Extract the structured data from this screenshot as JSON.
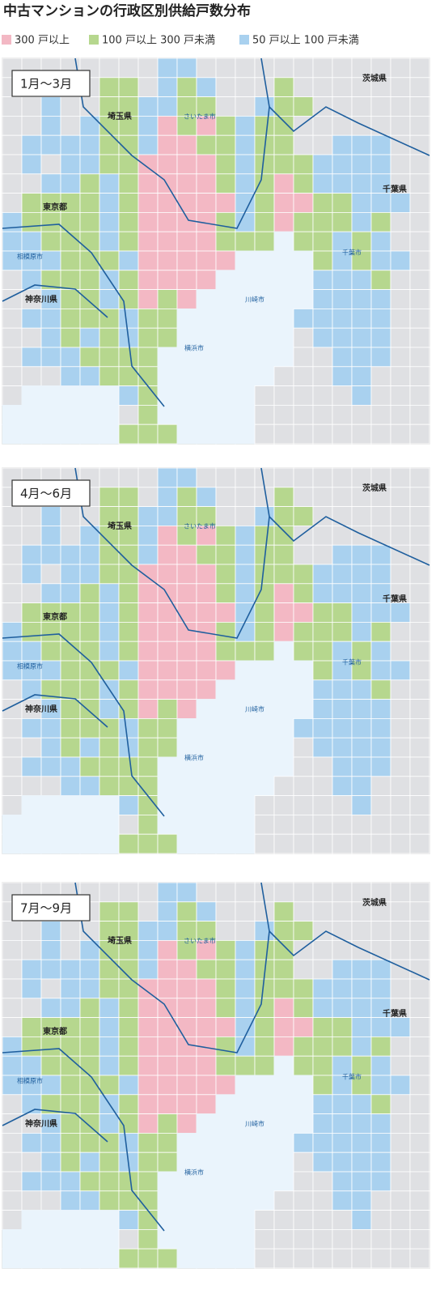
{
  "title": "中古マンションの行政区別供給戸数分布",
  "legend": [
    {
      "label": "300 戸以上",
      "color": "#f3b8c4"
    },
    {
      "label": "100 戸以上 300 戸未満",
      "color": "#b6d78e"
    },
    {
      "label": "50 戸以上 100 戸未満",
      "color": "#a9d1ef"
    }
  ],
  "panels": [
    {
      "label": "1月〜3月"
    },
    {
      "label": "4月〜6月"
    },
    {
      "label": "7月〜9月"
    }
  ],
  "map_labels": [
    "埼玉県",
    "東京都",
    "神奈川県",
    "千葉県",
    "茨城県",
    "さいたま市",
    "川崎市",
    "横浜市",
    "千葉市",
    "相模原市"
  ]
}
